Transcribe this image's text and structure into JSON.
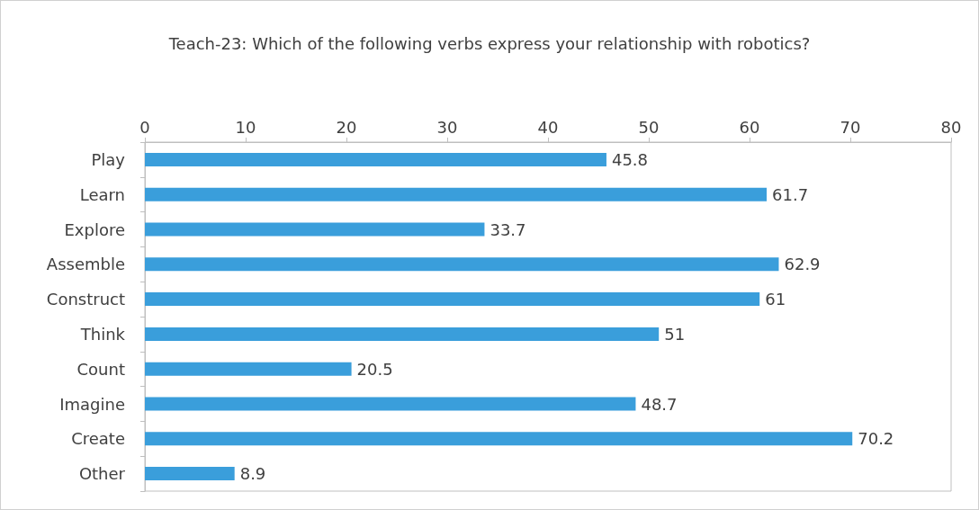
{
  "chart_data": {
    "type": "bar",
    "orientation": "horizontal",
    "title": "Teach-23: Which of the following verbs express your relationship with robotics?",
    "categories": [
      "Play",
      "Learn",
      "Explore",
      "Assemble",
      "Construct",
      "Think",
      "Count",
      "Imagine",
      "Create",
      "Other"
    ],
    "values": [
      45.8,
      61.7,
      33.7,
      62.9,
      61,
      51,
      20.5,
      48.7,
      70.2,
      8.9
    ],
    "color": "#3a9edb",
    "xlim": [
      0,
      80
    ],
    "xticks": [
      0,
      10,
      20,
      30,
      40,
      50,
      60,
      70,
      80
    ],
    "grid": false,
    "data_labels": true
  }
}
